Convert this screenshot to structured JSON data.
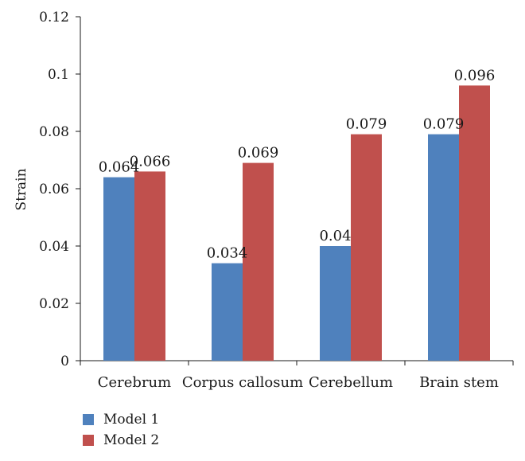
{
  "chart_data": {
    "type": "bar",
    "categories": [
      "Cerebrum",
      "Corpus callosum",
      "Cerebellum",
      "Brain stem"
    ],
    "series": [
      {
        "name": "Model 1",
        "color": "#4f81bd",
        "values": [
          0.064,
          0.034,
          0.04,
          0.079
        ]
      },
      {
        "name": "Model 2",
        "color": "#c0504d",
        "values": [
          0.066,
          0.069,
          0.079,
          0.096
        ]
      }
    ],
    "data_labels": [
      [
        "0.064",
        "0.034",
        "0.04",
        "0.079"
      ],
      [
        "0.066",
        "0.069",
        "0.079",
        "0.096"
      ]
    ],
    "ylabel": "Strain",
    "xlabel": "",
    "ylim": [
      0,
      0.12
    ],
    "yticks": [
      0,
      0.02,
      0.04,
      0.06,
      0.08,
      0.1,
      0.12
    ],
    "ytick_labels": [
      "0",
      "0.02",
      "0.04",
      "0.06",
      "0.08",
      "0.1",
      "0.12"
    ],
    "grid": false,
    "legend_position": "bottom-left"
  }
}
